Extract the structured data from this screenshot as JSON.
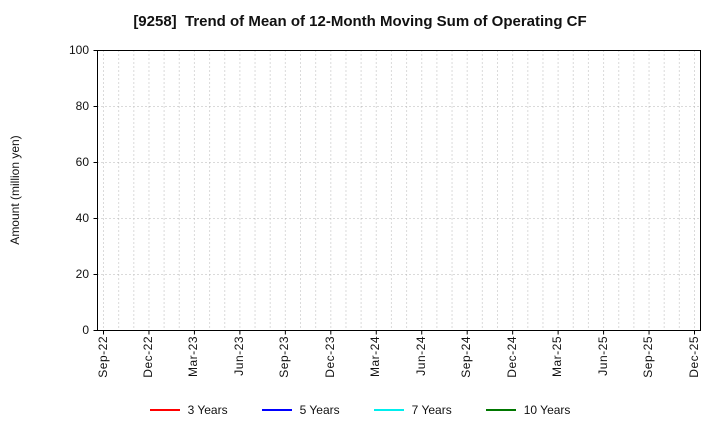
{
  "title": "[9258]  Trend of Mean of 12-Month Moving Sum of Operating CF",
  "chart_data": {
    "type": "line",
    "title": "[9258]  Trend of Mean of 12-Month Moving Sum of Operating CF",
    "xlabel": "",
    "ylabel": "Amount (million yen)",
    "x": [
      "Sep-22",
      "Dec-22",
      "Mar-23",
      "Jun-23",
      "Sep-23",
      "Dec-23",
      "Mar-24",
      "Jun-24",
      "Sep-24",
      "Dec-24",
      "Mar-25",
      "Jun-25",
      "Sep-25",
      "Dec-25"
    ],
    "ylim": [
      0,
      100
    ],
    "yticks": [
      0,
      20,
      40,
      60,
      80,
      100
    ],
    "grid": true,
    "legend_position": "bottom",
    "series": [
      {
        "name": "3 Years",
        "color": "#ff0000",
        "values": []
      },
      {
        "name": "5 Years",
        "color": "#0000ff",
        "values": []
      },
      {
        "name": "7 Years",
        "color": "#00eeee",
        "values": []
      },
      {
        "name": "10 Years",
        "color": "#007700",
        "values": []
      }
    ]
  }
}
